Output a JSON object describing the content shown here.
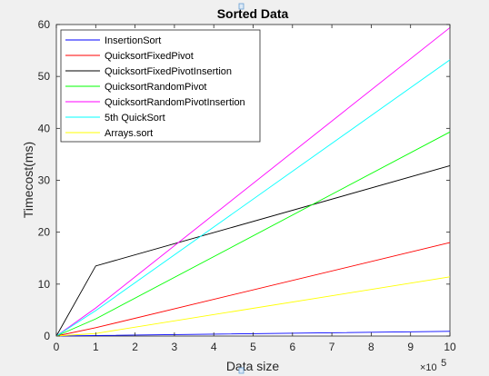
{
  "chart_data": {
    "type": "line",
    "title": "Sorted Data",
    "xlabel": "Data size",
    "ylabel": "Timecost(ms)",
    "x_exponent_base": "×10",
    "x_exponent_power": "5",
    "xlim": [
      0,
      10
    ],
    "ylim": [
      0,
      60
    ],
    "xticks": [
      0,
      1,
      2,
      3,
      4,
      5,
      6,
      7,
      8,
      9,
      10
    ],
    "yticks": [
      0,
      10,
      20,
      30,
      40,
      50,
      60
    ],
    "x": [
      0,
      1,
      10
    ],
    "grid": false,
    "legend_position": "top-left",
    "series": [
      {
        "name": "InsertionSort",
        "color": "#0000ff",
        "values": [
          0,
          0.1,
          0.9
        ]
      },
      {
        "name": "QuicksortFixedPivot",
        "color": "#ff0000",
        "values": [
          0,
          1.6,
          18
        ]
      },
      {
        "name": "QuicksortFixedPivotInsertion",
        "color": "#000000",
        "values": [
          0,
          13.5,
          32.8
        ]
      },
      {
        "name": "QuicksortRandomPivot",
        "color": "#00ff00",
        "values": [
          0,
          3.3,
          39.3
        ]
      },
      {
        "name": "QuicksortRandomPivotInsertion",
        "color": "#ff00ff",
        "values": [
          0,
          5.4,
          59.4
        ]
      },
      {
        "name": "5th QuickSort",
        "color": "#00ffff",
        "values": [
          0,
          4.9,
          53.2
        ]
      },
      {
        "name": "Arrays.sort",
        "color": "#ffff00",
        "values": [
          0,
          0.5,
          11.4
        ]
      }
    ]
  }
}
